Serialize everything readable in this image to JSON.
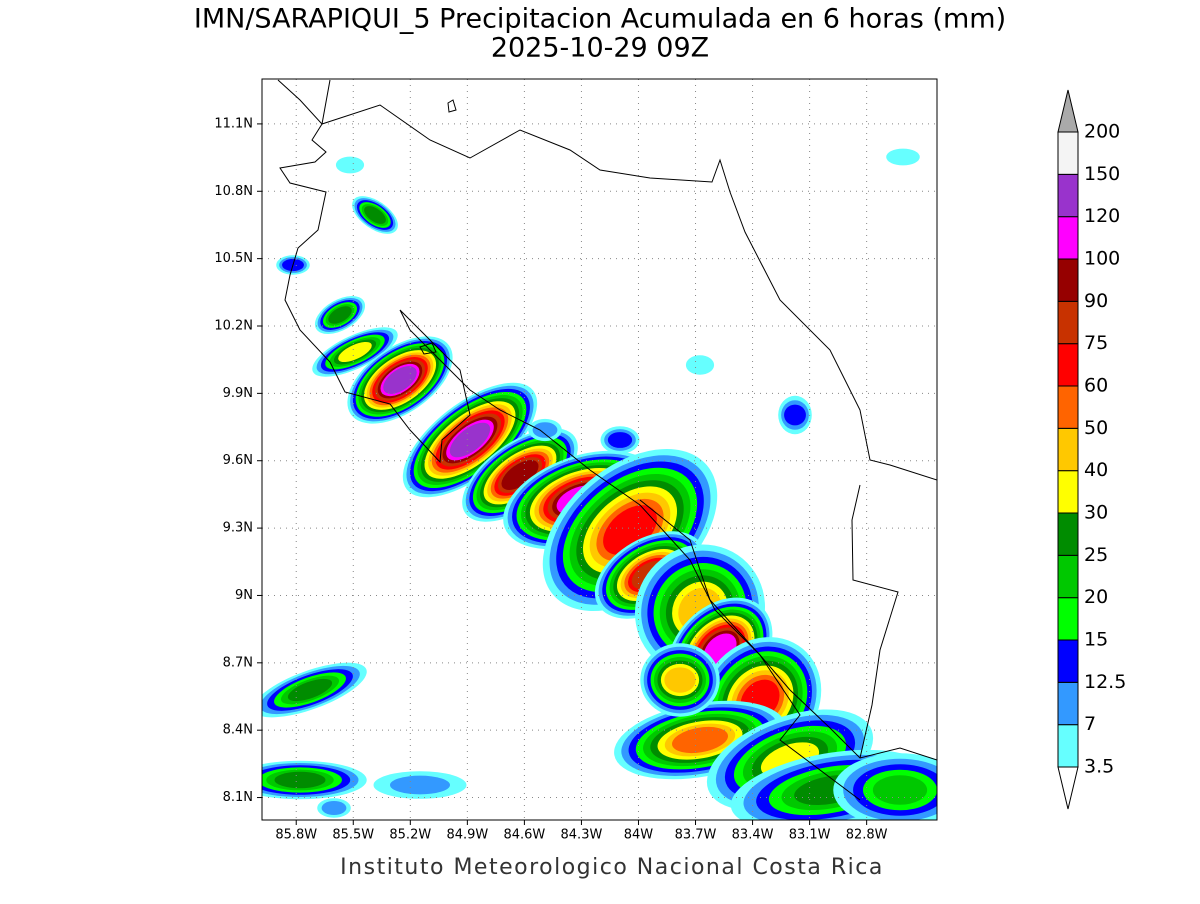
{
  "title": "IMN/SARAPIQUI_5 Precipitacion Acumulada en 6 horas (mm)",
  "subtitle": "2025-10-29 09Z",
  "footer": "Instituto Meteorologico Nacional Costa Rica",
  "map": {
    "lonlim": [
      -85.98,
      -82.43
    ],
    "latlim": [
      8.0,
      11.3
    ],
    "lon_ticks": [
      {
        "value": -85.8,
        "label": "85.8W"
      },
      {
        "value": -85.5,
        "label": "85.5W"
      },
      {
        "value": -85.2,
        "label": "85.2W"
      },
      {
        "value": -84.9,
        "label": "84.9W"
      },
      {
        "value": -84.6,
        "label": "84.6W"
      },
      {
        "value": -84.3,
        "label": "84.3W"
      },
      {
        "value": -84.0,
        "label": "84W"
      },
      {
        "value": -83.7,
        "label": "83.7W"
      },
      {
        "value": -83.4,
        "label": "83.4W"
      },
      {
        "value": -83.1,
        "label": "83.1W"
      },
      {
        "value": -82.8,
        "label": "82.8W"
      }
    ],
    "lat_ticks": [
      {
        "value": 8.1,
        "label": "8.1N"
      },
      {
        "value": 8.4,
        "label": "8.4N"
      },
      {
        "value": 8.7,
        "label": "8.7N"
      },
      {
        "value": 9.0,
        "label": "9N"
      },
      {
        "value": 9.3,
        "label": "9.3N"
      },
      {
        "value": 9.6,
        "label": "9.6N"
      },
      {
        "value": 9.9,
        "label": "9.9N"
      },
      {
        "value": 10.2,
        "label": "10.2N"
      },
      {
        "value": 10.5,
        "label": "10.5N"
      },
      {
        "value": 10.8,
        "label": "10.8N"
      },
      {
        "value": 11.1,
        "label": "11.1N"
      }
    ],
    "grid": true
  },
  "colorbar": {
    "levels": [
      3.5,
      7,
      12.5,
      15,
      20,
      25,
      30,
      40,
      50,
      60,
      75,
      90,
      100,
      120,
      150,
      200
    ],
    "colors": [
      "#66ffff",
      "#3399ff",
      "#0000ff",
      "#00ff00",
      "#00c800",
      "#008c00",
      "#ffff00",
      "#ffc800",
      "#ff6400",
      "#ff0000",
      "#c83200",
      "#960000",
      "#ff00ff",
      "#9933cc",
      "#f4f4f4"
    ],
    "under_color": "#ffffff",
    "over_color": "#aaaaaa"
  }
}
